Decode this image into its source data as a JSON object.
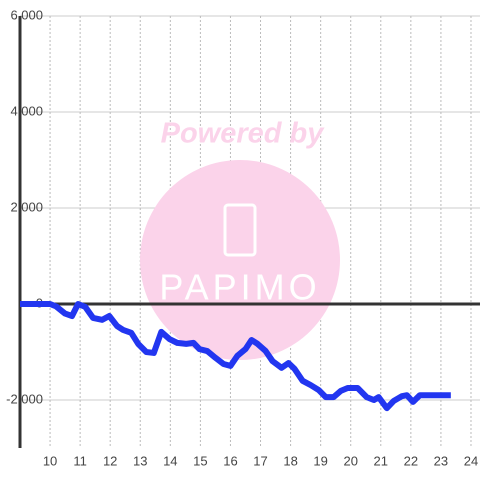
{
  "chart_data": {
    "type": "line",
    "watermark": {
      "text": "Powered by",
      "logo": "PAPIMO"
    },
    "x": [
      9,
      10,
      10.2,
      10.5,
      10.73,
      10.93,
      11.17,
      11.43,
      11.73,
      11.97,
      12.23,
      12.43,
      12.7,
      12.93,
      13.2,
      13.45,
      13.7,
      13.97,
      14.23,
      14.53,
      14.77,
      14.97,
      15.23,
      15.5,
      15.77,
      16.0,
      16.23,
      16.5,
      16.7,
      16.9,
      17.17,
      17.4,
      17.7,
      17.93,
      18.13,
      18.4,
      18.67,
      18.93,
      19.17,
      19.43,
      19.67,
      19.9,
      20.23,
      20.53,
      20.77,
      20.93,
      21.2,
      21.43,
      21.7,
      21.87,
      22.07,
      22.3,
      22.7,
      23.33
    ],
    "series": [
      {
        "color": "#2236f0",
        "values": [
          0,
          0,
          -50,
          -200,
          -250,
          0,
          -60,
          -290,
          -330,
          -250,
          -460,
          -540,
          -600,
          -830,
          -1000,
          -1020,
          -580,
          -730,
          -810,
          -830,
          -810,
          -940,
          -980,
          -1120,
          -1250,
          -1290,
          -1080,
          -940,
          -750,
          -830,
          -980,
          -1190,
          -1330,
          -1230,
          -1350,
          -1600,
          -1690,
          -1790,
          -1940,
          -1940,
          -1810,
          -1750,
          -1750,
          -1940,
          -2000,
          -1940,
          -2170,
          -2020,
          -1920,
          -1900,
          -2040,
          -1900,
          -1900,
          -1900
        ]
      }
    ],
    "xlim": [
      9,
      24.3
    ],
    "xticks": [
      10,
      11,
      12,
      13,
      14,
      15,
      16,
      17,
      18,
      19,
      20,
      21,
      22,
      23,
      24
    ],
    "ylim": [
      -3000,
      6000
    ],
    "yticks": [
      {
        "value": -2000,
        "label": "-2,000"
      },
      {
        "value": 0,
        "label": "0"
      },
      {
        "value": 2000,
        "label": "2,000"
      },
      {
        "value": 4000,
        "label": "4,000"
      },
      {
        "value": 6000,
        "label": "6,000"
      }
    ],
    "grid": true
  }
}
